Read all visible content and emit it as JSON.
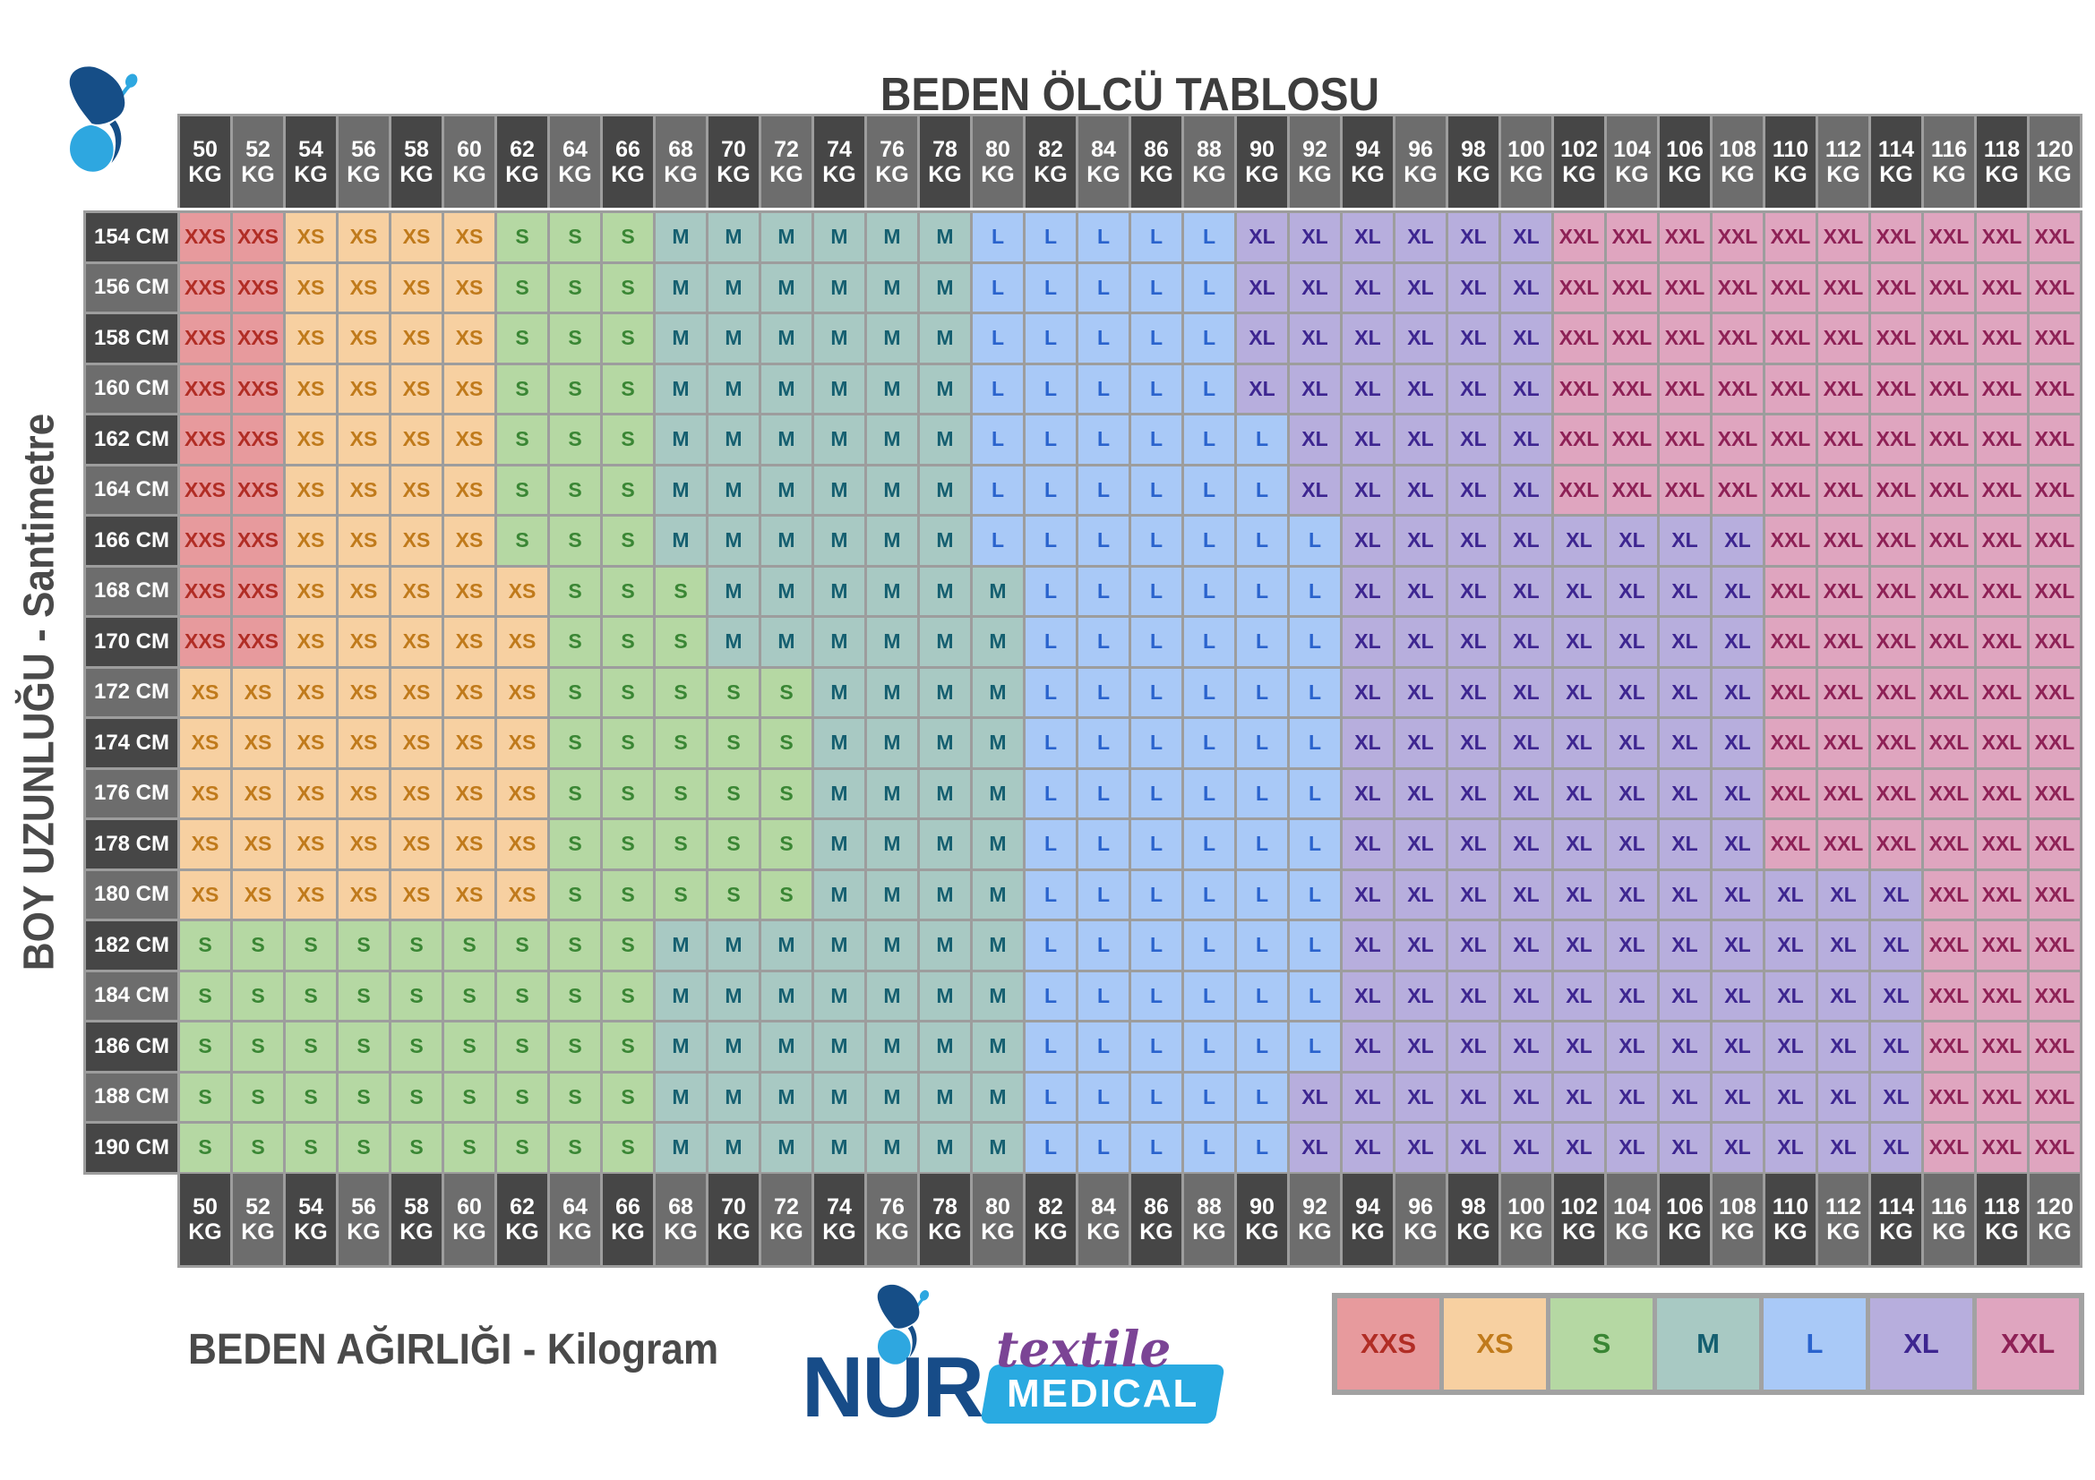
{
  "title": "BEDEN ÖLCÜ TABLOSU",
  "y_axis_label": "BOY UZUNLUĞU - Santimetre",
  "x_axis_label": "BEDEN AĞIRLIĞI - Kilogram",
  "units": {
    "weight": "KG",
    "height": "CM"
  },
  "legend": [
    "XXS",
    "XS",
    "S",
    "M",
    "L",
    "XL",
    "XXL"
  ],
  "colors": {
    "XXS": {
      "bg": "#e79a9d",
      "text": "#b12d25"
    },
    "XS": {
      "bg": "#f7d0a1",
      "text": "#c07a1b"
    },
    "S": {
      "bg": "#b5d8a3",
      "text": "#3a8634"
    },
    "M": {
      "bg": "#a8c9c3",
      "text": "#155f70"
    },
    "L": {
      "bg": "#a9c9f7",
      "text": "#2a63cd"
    },
    "XL": {
      "bg": "#b7aedd",
      "text": "#3d2590"
    },
    "XXL": {
      "bg": "#dfa5bf",
      "text": "#8e2156"
    }
  },
  "header_colors": {
    "dark": "#464646",
    "light": "#6d6d6d",
    "text": "#ffffff",
    "grid": "#9d9d9d"
  },
  "logo": {
    "brand": "NUR",
    "tagline": "textile",
    "badge": "MEDICAL"
  },
  "chart_data": {
    "type": "table",
    "title": "BEDEN ÖLCÜ TABLOSU",
    "xlabel": "BEDEN AĞIRLIĞI - Kilogram",
    "ylabel": "BOY UZUNLUĞU - Santimetre",
    "weights_kg": [
      50,
      52,
      54,
      56,
      58,
      60,
      62,
      64,
      66,
      68,
      70,
      72,
      74,
      76,
      78,
      80,
      82,
      84,
      86,
      88,
      90,
      92,
      94,
      96,
      98,
      100,
      102,
      104,
      106,
      108,
      110,
      112,
      114,
      116,
      118,
      120
    ],
    "heights_cm": [
      154,
      156,
      158,
      160,
      162,
      164,
      166,
      168,
      170,
      172,
      174,
      176,
      178,
      180,
      182,
      184,
      186,
      188,
      190
    ],
    "sizes": [
      [
        "XXS",
        "XXS",
        "XS",
        "XS",
        "XS",
        "XS",
        "S",
        "S",
        "S",
        "M",
        "M",
        "M",
        "M",
        "M",
        "M",
        "L",
        "L",
        "L",
        "L",
        "L",
        "XL",
        "XL",
        "XL",
        "XL",
        "XL",
        "XL",
        "XXL",
        "XXL",
        "XXL",
        "XXL",
        "XXL",
        "XXL",
        "XXL",
        "XXL",
        "XXL",
        "XXL"
      ],
      [
        "XXS",
        "XXS",
        "XS",
        "XS",
        "XS",
        "XS",
        "S",
        "S",
        "S",
        "M",
        "M",
        "M",
        "M",
        "M",
        "M",
        "L",
        "L",
        "L",
        "L",
        "L",
        "XL",
        "XL",
        "XL",
        "XL",
        "XL",
        "XL",
        "XXL",
        "XXL",
        "XXL",
        "XXL",
        "XXL",
        "XXL",
        "XXL",
        "XXL",
        "XXL",
        "XXL"
      ],
      [
        "XXS",
        "XXS",
        "XS",
        "XS",
        "XS",
        "XS",
        "S",
        "S",
        "S",
        "M",
        "M",
        "M",
        "M",
        "M",
        "M",
        "L",
        "L",
        "L",
        "L",
        "L",
        "XL",
        "XL",
        "XL",
        "XL",
        "XL",
        "XL",
        "XXL",
        "XXL",
        "XXL",
        "XXL",
        "XXL",
        "XXL",
        "XXL",
        "XXL",
        "XXL",
        "XXL"
      ],
      [
        "XXS",
        "XXS",
        "XS",
        "XS",
        "XS",
        "XS",
        "S",
        "S",
        "S",
        "M",
        "M",
        "M",
        "M",
        "M",
        "M",
        "L",
        "L",
        "L",
        "L",
        "L",
        "XL",
        "XL",
        "XL",
        "XL",
        "XL",
        "XL",
        "XXL",
        "XXL",
        "XXL",
        "XXL",
        "XXL",
        "XXL",
        "XXL",
        "XXL",
        "XXL",
        "XXL"
      ],
      [
        "XXS",
        "XXS",
        "XS",
        "XS",
        "XS",
        "XS",
        "S",
        "S",
        "S",
        "M",
        "M",
        "M",
        "M",
        "M",
        "M",
        "L",
        "L",
        "L",
        "L",
        "L",
        "L",
        "XL",
        "XL",
        "XL",
        "XL",
        "XL",
        "XXL",
        "XXL",
        "XXL",
        "XXL",
        "XXL",
        "XXL",
        "XXL",
        "XXL",
        "XXL",
        "XXL"
      ],
      [
        "XXS",
        "XXS",
        "XS",
        "XS",
        "XS",
        "XS",
        "S",
        "S",
        "S",
        "M",
        "M",
        "M",
        "M",
        "M",
        "M",
        "L",
        "L",
        "L",
        "L",
        "L",
        "L",
        "XL",
        "XL",
        "XL",
        "XL",
        "XL",
        "XXL",
        "XXL",
        "XXL",
        "XXL",
        "XXL",
        "XXL",
        "XXL",
        "XXL",
        "XXL",
        "XXL"
      ],
      [
        "XXS",
        "XXS",
        "XS",
        "XS",
        "XS",
        "XS",
        "S",
        "S",
        "S",
        "M",
        "M",
        "M",
        "M",
        "M",
        "M",
        "L",
        "L",
        "L",
        "L",
        "L",
        "L",
        "L",
        "XL",
        "XL",
        "XL",
        "XL",
        "XL",
        "XL",
        "XL",
        "XL",
        "XXL",
        "XXL",
        "XXL",
        "XXL",
        "XXL",
        "XXL"
      ],
      [
        "XXS",
        "XXS",
        "XS",
        "XS",
        "XS",
        "XS",
        "XS",
        "S",
        "S",
        "S",
        "M",
        "M",
        "M",
        "M",
        "M",
        "M",
        "L",
        "L",
        "L",
        "L",
        "L",
        "L",
        "XL",
        "XL",
        "XL",
        "XL",
        "XL",
        "XL",
        "XL",
        "XL",
        "XXL",
        "XXL",
        "XXL",
        "XXL",
        "XXL",
        "XXL"
      ],
      [
        "XXS",
        "XXS",
        "XS",
        "XS",
        "XS",
        "XS",
        "XS",
        "S",
        "S",
        "S",
        "M",
        "M",
        "M",
        "M",
        "M",
        "M",
        "L",
        "L",
        "L",
        "L",
        "L",
        "L",
        "XL",
        "XL",
        "XL",
        "XL",
        "XL",
        "XL",
        "XL",
        "XL",
        "XXL",
        "XXL",
        "XXL",
        "XXL",
        "XXL",
        "XXL"
      ],
      [
        "XS",
        "XS",
        "XS",
        "XS",
        "XS",
        "XS",
        "XS",
        "S",
        "S",
        "S",
        "S",
        "S",
        "M",
        "M",
        "M",
        "M",
        "L",
        "L",
        "L",
        "L",
        "L",
        "L",
        "XL",
        "XL",
        "XL",
        "XL",
        "XL",
        "XL",
        "XL",
        "XL",
        "XXL",
        "XXL",
        "XXL",
        "XXL",
        "XXL",
        "XXL"
      ],
      [
        "XS",
        "XS",
        "XS",
        "XS",
        "XS",
        "XS",
        "XS",
        "S",
        "S",
        "S",
        "S",
        "S",
        "M",
        "M",
        "M",
        "M",
        "L",
        "L",
        "L",
        "L",
        "L",
        "L",
        "XL",
        "XL",
        "XL",
        "XL",
        "XL",
        "XL",
        "XL",
        "XL",
        "XXL",
        "XXL",
        "XXL",
        "XXL",
        "XXL",
        "XXL"
      ],
      [
        "XS",
        "XS",
        "XS",
        "XS",
        "XS",
        "XS",
        "XS",
        "S",
        "S",
        "S",
        "S",
        "S",
        "M",
        "M",
        "M",
        "M",
        "L",
        "L",
        "L",
        "L",
        "L",
        "L",
        "XL",
        "XL",
        "XL",
        "XL",
        "XL",
        "XL",
        "XL",
        "XL",
        "XXL",
        "XXL",
        "XXL",
        "XXL",
        "XXL",
        "XXL"
      ],
      [
        "XS",
        "XS",
        "XS",
        "XS",
        "XS",
        "XS",
        "XS",
        "S",
        "S",
        "S",
        "S",
        "S",
        "M",
        "M",
        "M",
        "M",
        "L",
        "L",
        "L",
        "L",
        "L",
        "L",
        "XL",
        "XL",
        "XL",
        "XL",
        "XL",
        "XL",
        "XL",
        "XL",
        "XXL",
        "XXL",
        "XXL",
        "XXL",
        "XXL",
        "XXL"
      ],
      [
        "XS",
        "XS",
        "XS",
        "XS",
        "XS",
        "XS",
        "XS",
        "S",
        "S",
        "S",
        "S",
        "S",
        "M",
        "M",
        "M",
        "M",
        "L",
        "L",
        "L",
        "L",
        "L",
        "L",
        "XL",
        "XL",
        "XL",
        "XL",
        "XL",
        "XL",
        "XL",
        "XL",
        "XL",
        "XL",
        "XL",
        "XXL",
        "XXL",
        "XXL"
      ],
      [
        "S",
        "S",
        "S",
        "S",
        "S",
        "S",
        "S",
        "S",
        "S",
        "M",
        "M",
        "M",
        "M",
        "M",
        "M",
        "M",
        "L",
        "L",
        "L",
        "L",
        "L",
        "L",
        "XL",
        "XL",
        "XL",
        "XL",
        "XL",
        "XL",
        "XL",
        "XL",
        "XL",
        "XL",
        "XL",
        "XXL",
        "XXL",
        "XXL"
      ],
      [
        "S",
        "S",
        "S",
        "S",
        "S",
        "S",
        "S",
        "S",
        "S",
        "M",
        "M",
        "M",
        "M",
        "M",
        "M",
        "M",
        "L",
        "L",
        "L",
        "L",
        "L",
        "L",
        "XL",
        "XL",
        "XL",
        "XL",
        "XL",
        "XL",
        "XL",
        "XL",
        "XL",
        "XL",
        "XL",
        "XXL",
        "XXL",
        "XXL"
      ],
      [
        "S",
        "S",
        "S",
        "S",
        "S",
        "S",
        "S",
        "S",
        "S",
        "M",
        "M",
        "M",
        "M",
        "M",
        "M",
        "M",
        "L",
        "L",
        "L",
        "L",
        "L",
        "L",
        "XL",
        "XL",
        "XL",
        "XL",
        "XL",
        "XL",
        "XL",
        "XL",
        "XL",
        "XL",
        "XL",
        "XXL",
        "XXL",
        "XXL"
      ],
      [
        "S",
        "S",
        "S",
        "S",
        "S",
        "S",
        "S",
        "S",
        "S",
        "M",
        "M",
        "M",
        "M",
        "M",
        "M",
        "M",
        "L",
        "L",
        "L",
        "L",
        "L",
        "XL",
        "XL",
        "XL",
        "XL",
        "XL",
        "XL",
        "XL",
        "XL",
        "XL",
        "XL",
        "XL",
        "XL",
        "XXL",
        "XXL",
        "XXL"
      ],
      [
        "S",
        "S",
        "S",
        "S",
        "S",
        "S",
        "S",
        "S",
        "S",
        "M",
        "M",
        "M",
        "M",
        "M",
        "M",
        "M",
        "L",
        "L",
        "L",
        "L",
        "L",
        "XL",
        "XL",
        "XL",
        "XL",
        "XL",
        "XL",
        "XL",
        "XL",
        "XL",
        "XL",
        "XL",
        "XL",
        "XXL",
        "XXL",
        "XXL"
      ]
    ]
  }
}
